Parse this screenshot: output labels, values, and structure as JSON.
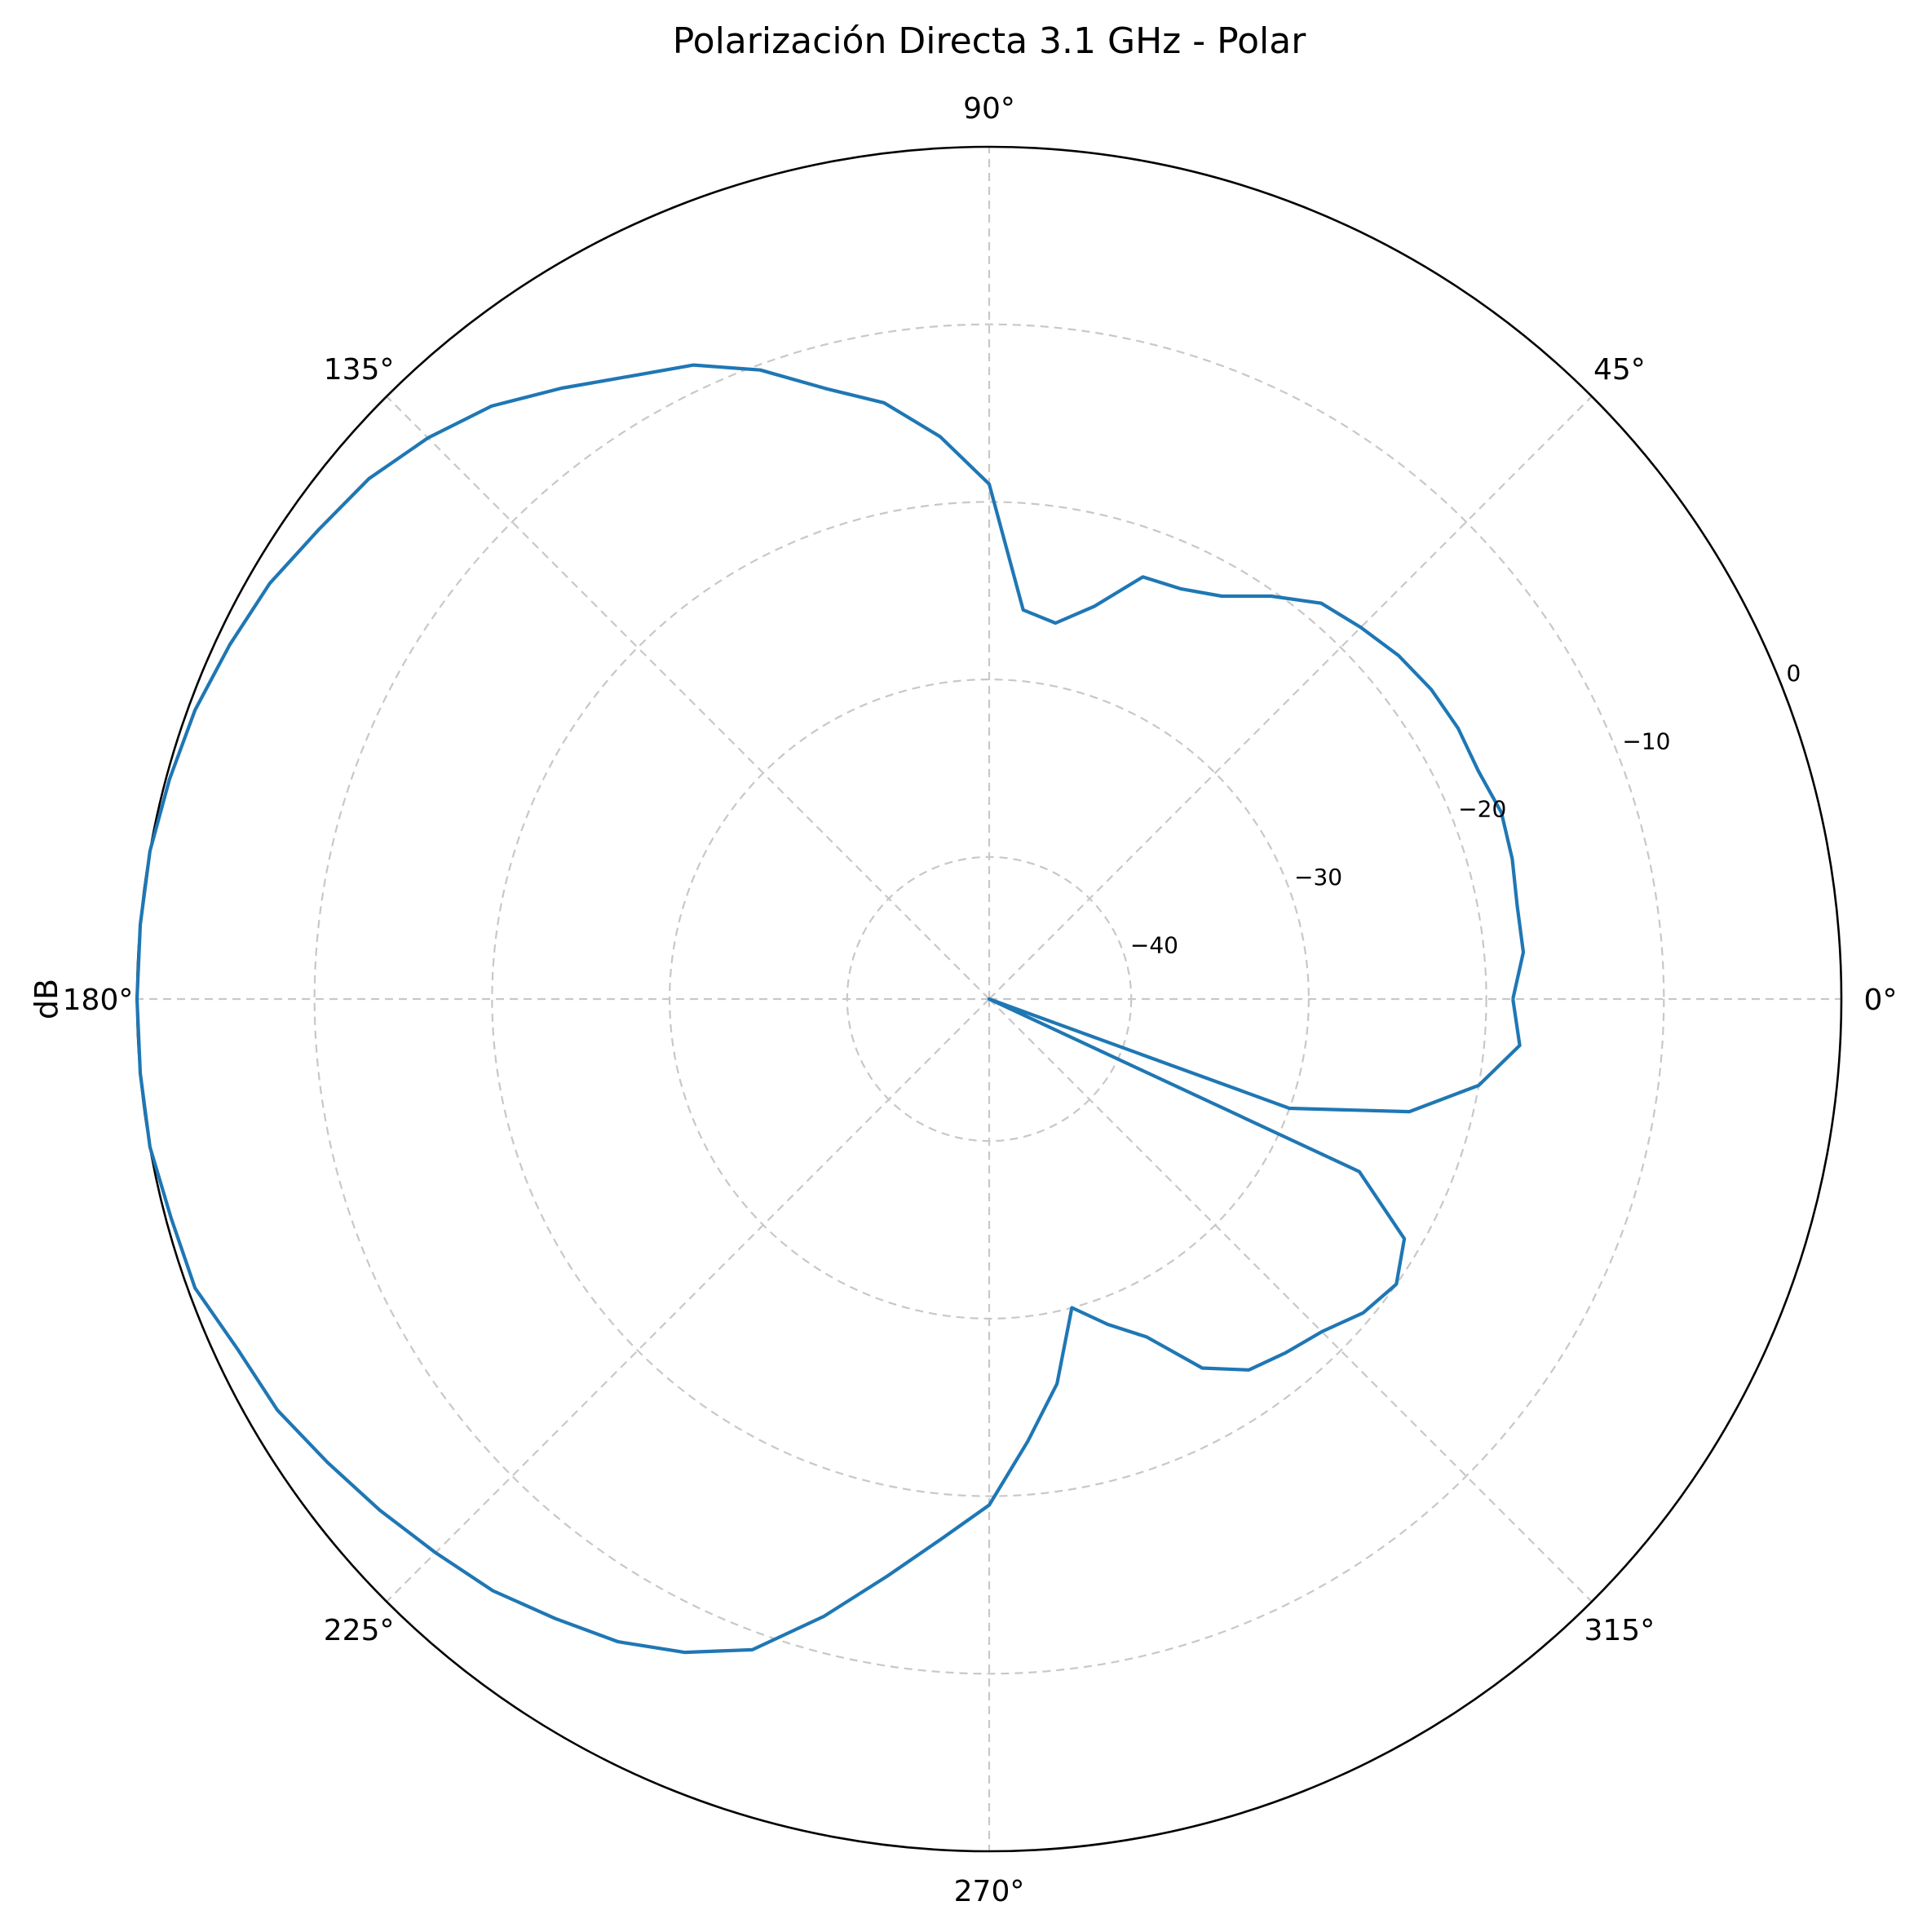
{
  "chart_data": {
    "type": "line",
    "projection": "polar",
    "title": "Polarización Directa 3.1 GHz - Polar",
    "ylabel": "dB",
    "theta_ticks": [
      0,
      45,
      90,
      135,
      180,
      225,
      270,
      315
    ],
    "theta_tick_labels": [
      "0°",
      "45°",
      "90°",
      "135°",
      "180°",
      "225°",
      "270°",
      "315°"
    ],
    "r_ticks": [
      -40,
      -30,
      -20,
      -10,
      0
    ],
    "r_tick_labels": [
      "−40",
      "−30",
      "−20",
      "−10",
      "0"
    ],
    "rlim": [
      -48,
      0
    ],
    "grid": true,
    "color": "#1f77b4",
    "series": [
      {
        "theta_deg": [
          0,
          5,
          10,
          15,
          20,
          25,
          30,
          35,
          40,
          45,
          50,
          55,
          60,
          65,
          70,
          75,
          80,
          85,
          90,
          95,
          100,
          105,
          110,
          115,
          120,
          125,
          130,
          135,
          140,
          145,
          150,
          155,
          160,
          165,
          170,
          175,
          180,
          185,
          190,
          195,
          200,
          205,
          210,
          215,
          220,
          225,
          230,
          235,
          240,
          245,
          250,
          255,
          260,
          265,
          270,
          275,
          280,
          285,
          290,
          295,
          300,
          305,
          310,
          315,
          320,
          325,
          330,
          335,
          337,
          340,
          345,
          350,
          355,
          360
        ],
        "r_db": [
          -18.5,
          -17.8,
          -17.8,
          -17.5,
          -17.3,
          -17.6,
          -17.5,
          -17.6,
          -17.9,
          -18.4,
          -18.9,
          -20.3,
          -21.8,
          -22.5,
          -22.7,
          -25.1,
          -26.5,
          -26.0,
          -19.0,
          -16.2,
          -13.9,
          -12.4,
          -10.3,
          -8.6,
          -7.5,
          -6.0,
          -4.4,
          -3.3,
          -2.4,
          -1.9,
          -1.2,
          -0.8,
          -0.4,
          -0.2,
          0.0,
          0.0,
          0.0,
          0.0,
          0.0,
          -0.3,
          -0.4,
          -1.3,
          -1.7,
          -2.5,
          -3.2,
          -3.9,
          -4.5,
          -5.4,
          -6.2,
          -7.4,
          -9.0,
          -12.0,
          -15.0,
          -17.5,
          -19.5,
          -23.0,
          -26.0,
          -30.0,
          -28.5,
          -27.0,
          -24.0,
          -22.5,
          -22.0,
          -21.5,
          -20.5,
          -20.0,
          -21.0,
          -25.0,
          -48.0,
          -30.0,
          -23.5,
          -20.0,
          -18.0,
          -18.5
        ]
      }
    ]
  }
}
